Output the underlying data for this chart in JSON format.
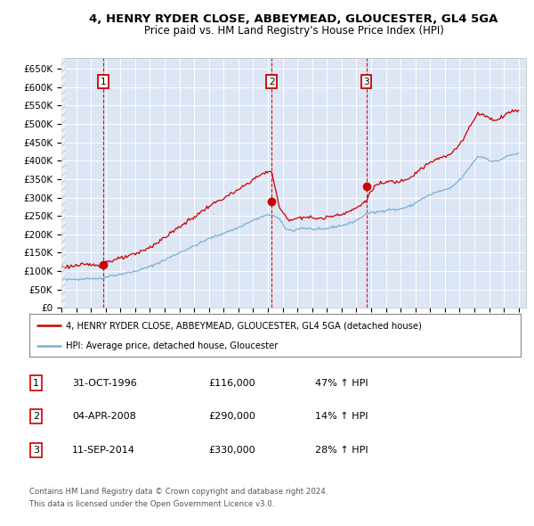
{
  "title": "4, HENRY RYDER CLOSE, ABBEYMEAD, GLOUCESTER, GL4 5GA",
  "subtitle": "Price paid vs. HM Land Registry's House Price Index (HPI)",
  "legend_label_red": "4, HENRY RYDER CLOSE, ABBEYMEAD, GLOUCESTER, GL4 5GA (detached house)",
  "legend_label_blue": "HPI: Average price, detached house, Gloucester",
  "footer1": "Contains HM Land Registry data © Crown copyright and database right 2024.",
  "footer2": "This data is licensed under the Open Government Licence v3.0.",
  "transactions": [
    {
      "num": 1,
      "date": "31-OCT-1996",
      "price": "£116,000",
      "hpi_change": "47% ↑ HPI"
    },
    {
      "num": 2,
      "date": "04-APR-2008",
      "price": "£290,000",
      "hpi_change": "14% ↑ HPI"
    },
    {
      "num": 3,
      "date": "11-SEP-2014",
      "price": "£330,000",
      "hpi_change": "28% ↑ HPI"
    }
  ],
  "transaction_dates_decimal": [
    1996.83,
    2008.25,
    2014.67
  ],
  "transaction_prices": [
    116000,
    290000,
    330000
  ],
  "ylim": [
    0,
    680000
  ],
  "yticks": [
    0,
    50000,
    100000,
    150000,
    200000,
    250000,
    300000,
    350000,
    400000,
    450000,
    500000,
    550000,
    600000,
    650000
  ],
  "plot_bg_color": "#dce6f5",
  "red_color": "#cc0000",
  "blue_color": "#7ab0d4",
  "xlim_start": 1994.0,
  "xlim_end": 2025.5,
  "fig_width": 6.0,
  "fig_height": 5.9
}
